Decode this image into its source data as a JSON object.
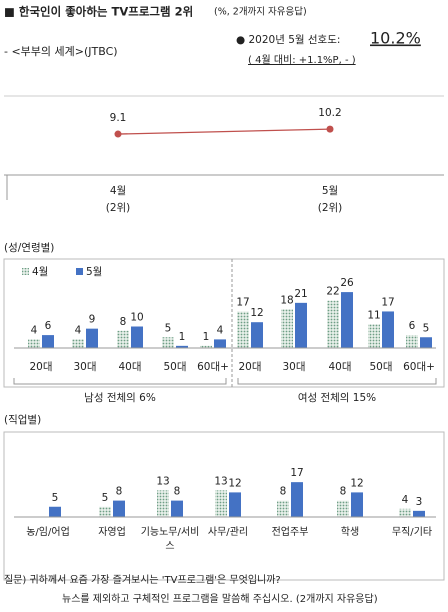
{
  "header": {
    "title": "■ 한국인이 좋아하는 TV프로그램 2위",
    "title_note": "(%, 2개까지 자유응답)",
    "subtitle": "- <부부의 세계>(JTBC)",
    "stat_label": "● 2020년 5월 선호도:",
    "stat_value": "10.2%",
    "stat_change": "( 4월 대비: +1.1%P,  -  )"
  },
  "chart_data": [
    {
      "type": "line",
      "categories": [
        "4월",
        "5월"
      ],
      "category_notes": [
        "(2위)",
        "(2위)"
      ],
      "values": [
        9.1,
        10.2
      ],
      "color": "#c0504d"
    },
    {
      "type": "bar",
      "title": "(성/연령별)",
      "categories": [
        "20대",
        "30대",
        "40대",
        "50대",
        "60대+",
        "20대",
        "30대",
        "40대",
        "50대",
        "60대+"
      ],
      "groups": [
        "남성 전체의 6%",
        "여성 전체의 15%"
      ],
      "series": [
        {
          "name": "4월",
          "color": "#6e9e86",
          "values": [
            4,
            4,
            8,
            5,
            1,
            17,
            18,
            22,
            11,
            6
          ]
        },
        {
          "name": "5월",
          "color": "#4472c4",
          "values": [
            6,
            9,
            10,
            1,
            4,
            12,
            21,
            26,
            17,
            5
          ]
        }
      ]
    },
    {
      "type": "bar",
      "title": "(직업별)",
      "categories": [
        "농/임/어업",
        "자영업",
        "기능노무/서비스",
        "사무/관리",
        "전업주부",
        "학생",
        "무직/기타"
      ],
      "series": [
        {
          "name": "4월",
          "color": "#6e9e86",
          "values": [
            null,
            5,
            13,
            13,
            8,
            8,
            4
          ]
        },
        {
          "name": "5월",
          "color": "#4472c4",
          "values": [
            5,
            8,
            8,
            12,
            17,
            12,
            3
          ]
        }
      ]
    }
  ],
  "footnote": {
    "line1": "질문) 귀하께서 요즘 가장 즐겨보시는 'TV프로그램'은 무엇입니까?",
    "line2": "뉴스를 제외하고 구체적인 프로그램을 말씀해 주십시오. (2개까지 자유응답)"
  }
}
